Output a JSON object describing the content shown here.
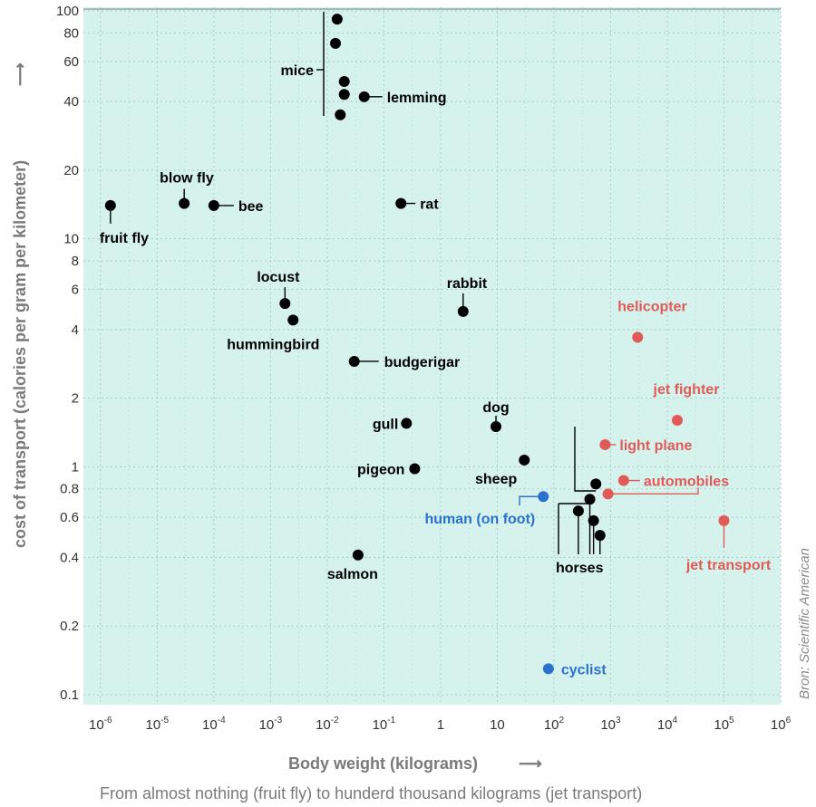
{
  "chart_data": {
    "type": "scatter",
    "title": "",
    "xlabel": "Body weight (kilograms)",
    "ylabel": "cost of transport (calories per gram per  kilometer)",
    "subtitle": "From almost nothing (fruit fly) to hunderd thousand kilograms (jet transport)",
    "source": "Bron: Scientific American",
    "axis_arrow": "⟶",
    "xscale": "log",
    "yscale": "log",
    "xlim": [
      5e-07,
      1000000
    ],
    "ylim": [
      0.1,
      100
    ],
    "grid": true,
    "x_ticks": [
      {
        "value": 1e-06,
        "base": "10",
        "exp": "-6"
      },
      {
        "value": 1e-05,
        "base": "10",
        "exp": "-5"
      },
      {
        "value": 0.0001,
        "base": "10",
        "exp": "-4"
      },
      {
        "value": 0.001,
        "base": "10",
        "exp": "-3"
      },
      {
        "value": 0.01,
        "base": "10",
        "exp": "-2"
      },
      {
        "value": 0.1,
        "base": "10",
        "exp": "-1"
      },
      {
        "value": 1,
        "base": "1",
        "exp": ""
      },
      {
        "value": 10,
        "base": "10",
        "exp": ""
      },
      {
        "value": 100,
        "base": "10",
        "exp": "2"
      },
      {
        "value": 1000,
        "base": "10",
        "exp": "3"
      },
      {
        "value": 10000,
        "base": "10",
        "exp": "4"
      },
      {
        "value": 100000,
        "base": "10",
        "exp": "5"
      },
      {
        "value": 1000000,
        "base": "10",
        "exp": "6"
      }
    ],
    "y_ticks": [
      {
        "value": 0.1,
        "label": "0.1"
      },
      {
        "value": 0.2,
        "label": "0.2"
      },
      {
        "value": 0.4,
        "label": "0.4"
      },
      {
        "value": 0.6,
        "label": "0.6"
      },
      {
        "value": 0.8,
        "label": "0.8"
      },
      {
        "value": 1,
        "label": "1"
      },
      {
        "value": 2,
        "label": "2"
      },
      {
        "value": 4,
        "label": "4"
      },
      {
        "value": 6,
        "label": "6"
      },
      {
        "value": 8,
        "label": "8"
      },
      {
        "value": 10,
        "label": "10"
      },
      {
        "value": 20,
        "label": "20"
      },
      {
        "value": 40,
        "label": "40"
      },
      {
        "value": 60,
        "label": "60"
      },
      {
        "value": 80,
        "label": "80"
      },
      {
        "value": 100,
        "label": "100"
      }
    ],
    "colors": {
      "background": "#d6f2ec",
      "grid": "#a8cec6",
      "animal": "#000000",
      "human": "#2a72d0",
      "machine": "#e05a58"
    },
    "points": [
      {
        "x": 1.5e-06,
        "y": 14,
        "label": "fruit fly",
        "group": "animal"
      },
      {
        "x": 3e-05,
        "y": 14.3,
        "label": "blow fly",
        "group": "animal"
      },
      {
        "x": 0.0001,
        "y": 14,
        "label": "bee",
        "group": "animal"
      },
      {
        "x": 0.015,
        "y": 92,
        "label": "mice",
        "group": "animal"
      },
      {
        "x": 0.014,
        "y": 72,
        "label": "mice",
        "group": "animal"
      },
      {
        "x": 0.02,
        "y": 49,
        "label": "mice",
        "group": "animal"
      },
      {
        "x": 0.02,
        "y": 43,
        "label": "mice",
        "group": "animal"
      },
      {
        "x": 0.017,
        "y": 35,
        "label": "mice",
        "group": "animal"
      },
      {
        "x": 0.045,
        "y": 42,
        "label": "lemming",
        "group": "animal"
      },
      {
        "x": 0.2,
        "y": 14.3,
        "label": "rat",
        "group": "animal"
      },
      {
        "x": 0.0018,
        "y": 5.2,
        "label": "locust",
        "group": "animal"
      },
      {
        "x": 0.0025,
        "y": 4.4,
        "label": "hummingbird",
        "group": "animal"
      },
      {
        "x": 2.5,
        "y": 4.8,
        "label": "rabbit",
        "group": "animal"
      },
      {
        "x": 0.03,
        "y": 2.9,
        "label": "budgerigar",
        "group": "animal"
      },
      {
        "x": 0.25,
        "y": 1.55,
        "label": "gull",
        "group": "animal"
      },
      {
        "x": 0.35,
        "y": 0.98,
        "label": "pigeon",
        "group": "animal"
      },
      {
        "x": 9.5,
        "y": 1.5,
        "label": "dog",
        "group": "animal"
      },
      {
        "x": 30,
        "y": 1.07,
        "label": "sheep",
        "group": "animal"
      },
      {
        "x": 0.035,
        "y": 0.41,
        "label": "salmon",
        "group": "animal"
      },
      {
        "x": 550,
        "y": 0.84,
        "label": "horses",
        "group": "animal"
      },
      {
        "x": 430,
        "y": 0.72,
        "label": "horses",
        "group": "animal"
      },
      {
        "x": 270,
        "y": 0.64,
        "label": "horses",
        "group": "animal"
      },
      {
        "x": 500,
        "y": 0.58,
        "label": "horses",
        "group": "animal"
      },
      {
        "x": 650,
        "y": 0.5,
        "label": "horses",
        "group": "animal"
      },
      {
        "x": 65,
        "y": 0.74,
        "label": "human (on foot)",
        "group": "human"
      },
      {
        "x": 80,
        "y": 0.13,
        "label": "cyclist",
        "group": "human"
      },
      {
        "x": 3000,
        "y": 3.7,
        "label": "helicopter",
        "group": "machine"
      },
      {
        "x": 15000,
        "y": 1.6,
        "label": "jet fighter",
        "group": "machine"
      },
      {
        "x": 800,
        "y": 1.25,
        "label": "light plane",
        "group": "machine"
      },
      {
        "x": 1700,
        "y": 0.87,
        "label": "automobiles",
        "group": "machine"
      },
      {
        "x": 900,
        "y": 0.76,
        "label": "automobiles",
        "group": "machine"
      },
      {
        "x": 100000,
        "y": 0.58,
        "label": "jet transport",
        "group": "machine"
      }
    ],
    "labels": [
      {
        "text": "fruit fly",
        "group": "animal"
      },
      {
        "text": "blow fly",
        "group": "animal"
      },
      {
        "text": "bee",
        "group": "animal"
      },
      {
        "text": "mice",
        "group": "animal"
      },
      {
        "text": "lemming",
        "group": "animal"
      },
      {
        "text": "rat",
        "group": "animal"
      },
      {
        "text": "locust",
        "group": "animal"
      },
      {
        "text": "hummingbird",
        "group": "animal"
      },
      {
        "text": "rabbit",
        "group": "animal"
      },
      {
        "text": "budgerigar",
        "group": "animal"
      },
      {
        "text": "gull",
        "group": "animal"
      },
      {
        "text": "pigeon",
        "group": "animal"
      },
      {
        "text": "dog",
        "group": "animal"
      },
      {
        "text": "sheep",
        "group": "animal"
      },
      {
        "text": "salmon",
        "group": "animal"
      },
      {
        "text": "horses",
        "group": "animal"
      },
      {
        "text": "human (on foot)",
        "group": "human"
      },
      {
        "text": "cyclist",
        "group": "human"
      },
      {
        "text": "helicopter",
        "group": "machine"
      },
      {
        "text": "jet fighter",
        "group": "machine"
      },
      {
        "text": "light plane",
        "group": "machine"
      },
      {
        "text": "automobiles",
        "group": "machine"
      },
      {
        "text": "jet transport",
        "group": "machine"
      }
    ]
  }
}
